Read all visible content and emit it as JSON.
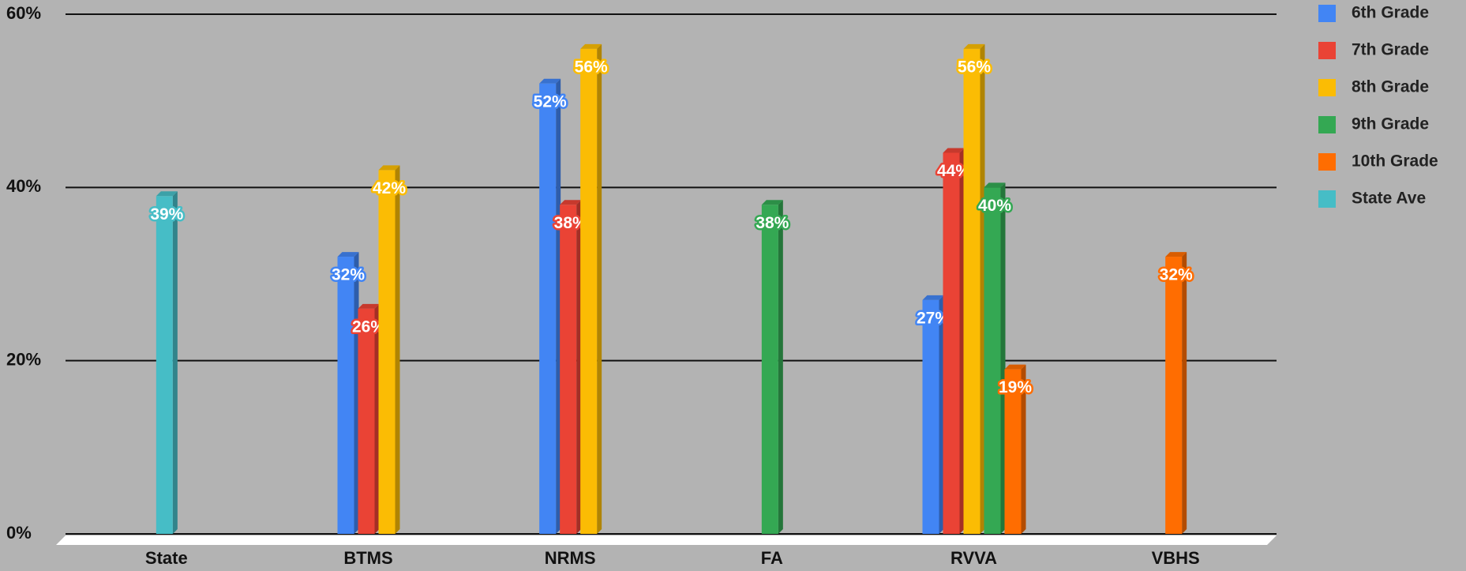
{
  "chart_data": {
    "type": "bar",
    "categories": [
      "State",
      "BTMS",
      "NRMS",
      "FA",
      "RVVA",
      "VBHS"
    ],
    "series": [
      {
        "name": "6th Grade",
        "color": "#4285f4",
        "values": [
          null,
          32,
          52,
          null,
          27,
          null
        ],
        "value_labels": [
          null,
          "32%",
          "52%",
          null,
          "27%",
          null
        ]
      },
      {
        "name": "7th Grade",
        "color": "#ea4335",
        "values": [
          null,
          26,
          38,
          null,
          44,
          null
        ],
        "value_labels": [
          null,
          "26%",
          "38%",
          null,
          "44%",
          null
        ]
      },
      {
        "name": "8th Grade",
        "color": "#fbbc04",
        "values": [
          null,
          42,
          56,
          null,
          56,
          null
        ],
        "value_labels": [
          null,
          "42%",
          "56%",
          null,
          "56%",
          null
        ]
      },
      {
        "name": "9th Grade",
        "color": "#34a853",
        "values": [
          null,
          null,
          null,
          38,
          40,
          null
        ],
        "value_labels": [
          null,
          null,
          null,
          "38%",
          "40%",
          null
        ]
      },
      {
        "name": "10th Grade",
        "color": "#ff6d01",
        "values": [
          null,
          null,
          null,
          null,
          19,
          32
        ],
        "value_labels": [
          null,
          null,
          null,
          null,
          "19%",
          "32%"
        ]
      },
      {
        "name": "State Ave",
        "color": "#46bdc6",
        "values": [
          39,
          null,
          null,
          null,
          null,
          null
        ],
        "value_labels": [
          "39%",
          null,
          null,
          null,
          null,
          null
        ]
      }
    ],
    "ylim": [
      0,
      60
    ],
    "yticks": [
      {
        "value": 0,
        "label": "0%"
      },
      {
        "value": 20,
        "label": "20%"
      },
      {
        "value": 40,
        "label": "40%"
      },
      {
        "value": 60,
        "label": "60%"
      }
    ],
    "grid": true,
    "legend": "right"
  }
}
